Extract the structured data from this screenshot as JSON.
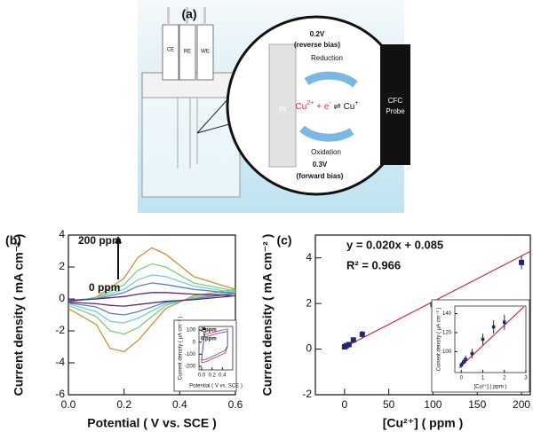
{
  "diagram": {
    "panel": "(a)",
    "electrodes": [
      "CE",
      "RE",
      "WE"
    ],
    "top_voltage": "0.2V",
    "top_bias": "(reverse bias)",
    "top_process": "Reduction",
    "left_electrode": "Pt",
    "reaction": {
      "ion": "Cu",
      "ion_charge": "2+",
      "middle": " + e",
      "electron_charge": "-",
      "arrow": " ⇌ Cu",
      "product_charge": "+"
    },
    "right_electrode": [
      "CFC",
      "Probe"
    ],
    "bottom_process": "Oxidation",
    "bottom_voltage": "0.3V",
    "bottom_bias": "(forward bias)"
  },
  "chart_data": [
    {
      "type": "line",
      "panel": "(b)",
      "xlabel": "Potential ( V vs. SCE )",
      "ylabel": "Current density ( mA cm⁻² )",
      "annotations": [
        "200 ppm",
        "0 ppm"
      ],
      "xlim": [
        0,
        0.6
      ],
      "xticks": [
        {
          "value": 0,
          "label": "0.0"
        },
        0.2,
        0.4,
        0.6
      ],
      "ylim": [
        -6,
        4
      ],
      "yticks": [
        -6,
        -4,
        -2,
        0,
        2,
        4
      ],
      "series": [
        {
          "color": "#c8943c",
          "x": [
            0,
            0.1,
            0.2,
            0.25,
            0.3,
            0.35,
            0.45,
            0.6,
            0.45,
            0.35,
            0.25,
            0.2,
            0.15,
            0.1,
            0
          ],
          "values": [
            -0.2,
            0.1,
            1.3,
            2.6,
            3.2,
            2.8,
            1.4,
            0.6,
            0.2,
            -0.6,
            -2.6,
            -3.3,
            -3.1,
            -1.6,
            -0.6
          ]
        },
        {
          "color": "#7ecf7e",
          "x": [
            0,
            0.1,
            0.2,
            0.25,
            0.3,
            0.35,
            0.45,
            0.6,
            0.45,
            0.35,
            0.25,
            0.2,
            0.15,
            0.1,
            0
          ],
          "values": [
            -0.1,
            0.05,
            0.9,
            1.8,
            2.2,
            2.0,
            1.0,
            0.5,
            0.1,
            -0.4,
            -1.8,
            -2.2,
            -2.0,
            -1.1,
            -0.4
          ]
        },
        {
          "color": "#6fd0d8",
          "x": [
            0,
            0.1,
            0.2,
            0.25,
            0.3,
            0.35,
            0.45,
            0.6,
            0.45,
            0.35,
            0.25,
            0.2,
            0.15,
            0.1,
            0
          ],
          "values": [
            -0.1,
            0.05,
            0.6,
            1.2,
            1.5,
            1.4,
            0.8,
            0.4,
            0.05,
            -0.3,
            -1.2,
            -1.5,
            -1.4,
            -0.8,
            -0.3
          ]
        },
        {
          "color": "#5e7fc8",
          "x": [
            0,
            0.1,
            0.2,
            0.25,
            0.3,
            0.35,
            0.45,
            0.6,
            0.45,
            0.35,
            0.25,
            0.2,
            0.15,
            0.1,
            0
          ],
          "values": [
            -0.1,
            0,
            0.4,
            0.8,
            1.0,
            0.9,
            0.6,
            0.35,
            0,
            -0.2,
            -0.8,
            -1.0,
            -0.9,
            -0.5,
            -0.25
          ]
        },
        {
          "color": "#5a2a6a",
          "x": [
            0,
            0.1,
            0.2,
            0.25,
            0.3,
            0.35,
            0.45,
            0.6,
            0.45,
            0.35,
            0.25,
            0.2,
            0.15,
            0.1,
            0
          ],
          "values": [
            -0.1,
            0,
            0.15,
            0.3,
            0.4,
            0.4,
            0.3,
            0.2,
            -0.05,
            -0.15,
            -0.35,
            -0.45,
            -0.4,
            -0.3,
            -0.2
          ]
        }
      ]
    },
    {
      "type": "line",
      "xlabel": "Potential ( V vs. SCE )",
      "ylabel": "Current density ( μA cm⁻² )",
      "annotations": [
        "2 ppm",
        "0 ppm"
      ],
      "xlim": [
        -0.05,
        0.6
      ],
      "xticks": [
        {
          "value": 0,
          "label": "0.0"
        },
        0.2,
        0.4
      ],
      "ylim": [
        -230,
        130
      ],
      "yticks": [
        -200,
        -100,
        0,
        100
      ],
      "series": [
        {
          "color": "#d62c3c",
          "x": [
            0,
            0.05,
            0.3,
            0.5,
            0.5,
            0.45,
            0.1,
            0,
            0
          ],
          "values": [
            -150,
            60,
            90,
            110,
            -40,
            -90,
            -160,
            -170,
            -150
          ]
        },
        {
          "color": "#3a4fb0",
          "x": [
            0,
            0.05,
            0.3,
            0.5,
            0.5,
            0.45,
            0.1,
            0,
            0
          ],
          "values": [
            -140,
            40,
            70,
            90,
            -30,
            -70,
            -140,
            -150,
            -140
          ]
        }
      ]
    },
    {
      "type": "scatter",
      "panel": "(c)",
      "xlabel": "[Cu²⁺] ( ppm )",
      "ylabel": "Current density ( mA cm⁻² )",
      "annotations": [
        "y = 0.020x + 0.085",
        "R² = 0.966"
      ],
      "xlim": [
        -33,
        210
      ],
      "xticks": [
        0,
        50,
        100,
        150,
        200
      ],
      "ylim": [
        -2,
        5
      ],
      "yticks": [
        -2,
        0,
        2,
        4
      ],
      "fit": {
        "color": "#d62c3c",
        "x": [
          0,
          210
        ],
        "values": [
          0.085,
          4.285
        ]
      },
      "points": {
        "color": "#1f2a6e",
        "x": [
          0,
          2,
          5,
          10,
          20,
          100,
          200
        ],
        "values": [
          0.1,
          0.15,
          0.2,
          0.4,
          0.65,
          1.95,
          3.8
        ],
        "errors": [
          0.05,
          0.05,
          0.05,
          0.05,
          0.15,
          0.2,
          0.3
        ]
      }
    },
    {
      "type": "scatter",
      "xlabel": "[Cu²⁺] ( ppm )",
      "ylabel": "Current density ( μA cm⁻² )",
      "xlim": [
        -0.3,
        3
      ],
      "xticks": [
        0,
        1,
        2,
        3
      ],
      "ylim": [
        78,
        148
      ],
      "yticks": [
        100,
        120,
        140
      ],
      "fit": {
        "color": "#d62c3c",
        "x": [
          -0.1,
          2.9
        ],
        "values": [
          83,
          147
        ]
      },
      "points": {
        "color": "#1f2a6e",
        "x": [
          0,
          0.1,
          0.2,
          0.5,
          1,
          1.5,
          2
        ],
        "values": [
          86,
          89,
          92,
          98,
          113,
          126,
          131
        ],
        "errors": [
          3,
          3,
          4,
          5,
          6,
          7,
          8
        ]
      }
    }
  ]
}
